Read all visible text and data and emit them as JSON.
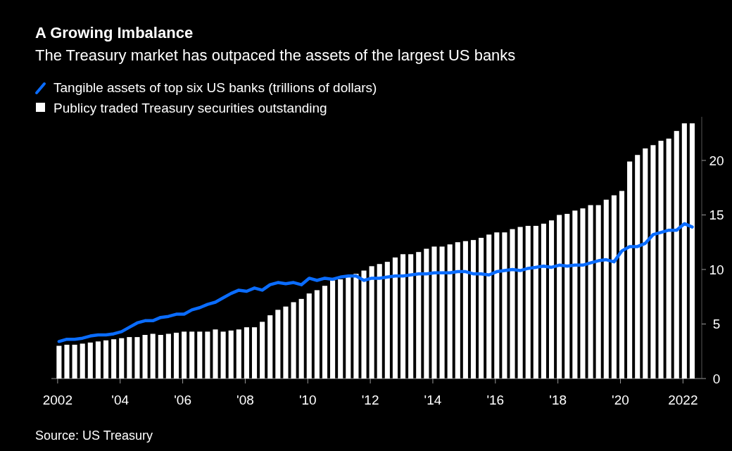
{
  "chart_data": {
    "type": "bar",
    "title": "A Growing Imbalance",
    "subtitle": "The Treasury market has outpaced the assets of the largest US banks",
    "x": [
      2002,
      2002.25,
      2002.5,
      2002.75,
      2003,
      2003.25,
      2003.5,
      2003.75,
      2004,
      2004.25,
      2004.5,
      2004.75,
      2005,
      2005.25,
      2005.5,
      2005.75,
      2006,
      2006.25,
      2006.5,
      2006.75,
      2007,
      2007.25,
      2007.5,
      2007.75,
      2008,
      2008.25,
      2008.5,
      2008.75,
      2009,
      2009.25,
      2009.5,
      2009.75,
      2010,
      2010.25,
      2010.5,
      2010.75,
      2011,
      2011.25,
      2011.5,
      2011.75,
      2012,
      2012.25,
      2012.5,
      2012.75,
      2013,
      2013.25,
      2013.5,
      2013.75,
      2014,
      2014.25,
      2014.5,
      2014.75,
      2015,
      2015.25,
      2015.5,
      2015.75,
      2016,
      2016.25,
      2016.5,
      2016.75,
      2017,
      2017.25,
      2017.5,
      2017.75,
      2018,
      2018.25,
      2018.5,
      2018.75,
      2019,
      2019.25,
      2019.5,
      2019.75,
      2020,
      2020.25,
      2020.5,
      2020.75,
      2021,
      2021.25,
      2021.5,
      2021.75,
      2022,
      2022.25
    ],
    "series": [
      {
        "type": "line",
        "name": "Tangible assets of top six US banks (trillions of dollars)",
        "color": "#0a6cff",
        "values": [
          3.4,
          3.6,
          3.6,
          3.7,
          3.9,
          4.0,
          4.0,
          4.1,
          4.3,
          4.7,
          5.1,
          5.3,
          5.3,
          5.6,
          5.7,
          5.9,
          5.9,
          6.3,
          6.5,
          6.8,
          7.0,
          7.4,
          7.8,
          8.1,
          8.0,
          8.3,
          8.1,
          8.6,
          8.8,
          8.7,
          8.8,
          8.6,
          9.2,
          9.0,
          9.2,
          9.1,
          9.3,
          9.4,
          9.4,
          9.0,
          9.2,
          9.2,
          9.3,
          9.4,
          9.4,
          9.5,
          9.6,
          9.6,
          9.7,
          9.7,
          9.7,
          9.8,
          9.8,
          9.6,
          9.6,
          9.5,
          9.8,
          9.9,
          10.0,
          9.9,
          10.1,
          10.2,
          10.3,
          10.2,
          10.4,
          10.3,
          10.4,
          10.4,
          10.6,
          10.8,
          10.9,
          10.7,
          11.7,
          12.1,
          12.1,
          12.4,
          13.2,
          13.4,
          13.6,
          13.6,
          14.2,
          13.9
        ]
      },
      {
        "name": "Publicy traded Treasury securities outstanding",
        "color": "#ffffff",
        "values": [
          3.0,
          3.1,
          3.1,
          3.2,
          3.3,
          3.4,
          3.5,
          3.6,
          3.7,
          3.8,
          3.8,
          4.0,
          4.1,
          4.0,
          4.1,
          4.2,
          4.3,
          4.3,
          4.3,
          4.3,
          4.5,
          4.3,
          4.4,
          4.5,
          4.7,
          4.7,
          5.2,
          5.8,
          6.3,
          6.6,
          7.0,
          7.3,
          7.8,
          8.1,
          8.5,
          9.0,
          9.1,
          9.3,
          9.6,
          9.9,
          10.3,
          10.5,
          10.7,
          11.1,
          11.4,
          11.4,
          11.6,
          11.9,
          12.1,
          12.1,
          12.3,
          12.5,
          12.6,
          12.7,
          12.9,
          13.2,
          13.4,
          13.4,
          13.7,
          13.9,
          14.0,
          14.0,
          14.2,
          14.5,
          15.0,
          15.1,
          15.4,
          15.6,
          15.9,
          15.9,
          16.4,
          16.8,
          17.2,
          19.9,
          20.5,
          21.1,
          21.4,
          21.8,
          22.0,
          22.7,
          23.4,
          23.4
        ]
      }
    ],
    "xlim": [
      2001.8,
      2022.6
    ],
    "xticks": [
      2002,
      {
        "value": 2004,
        "label": "'04"
      },
      {
        "value": 2006,
        "label": "'06"
      },
      {
        "value": 2008,
        "label": "'08"
      },
      {
        "value": 2010,
        "label": "'10"
      },
      {
        "value": 2012,
        "label": "'12"
      },
      {
        "value": 2014,
        "label": "'14"
      },
      {
        "value": 2016,
        "label": "'16"
      },
      {
        "value": 2018,
        "label": "'18"
      },
      {
        "value": 2020,
        "label": "'20"
      },
      2022
    ],
    "ylim": [
      0,
      24
    ],
    "yticks": [
      0,
      5,
      10,
      15,
      20
    ],
    "legend": "top left",
    "annotations": [
      "Source: US Treasury"
    ]
  }
}
